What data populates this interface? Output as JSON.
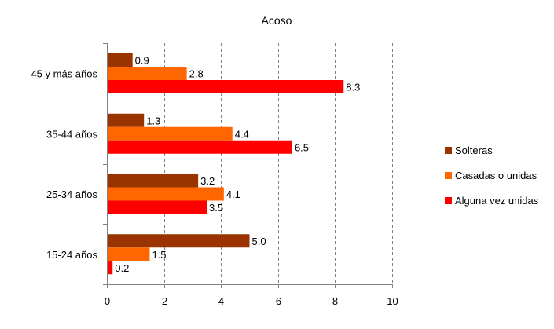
{
  "chart_data": {
    "type": "bar",
    "orientation": "horizontal",
    "title": "Acoso",
    "categories": [
      "45 y más años",
      "35-44 años",
      "25-34 años",
      "15-24 años"
    ],
    "series": [
      {
        "name": "Solteras",
        "color": "#993300",
        "values": [
          0.9,
          1.3,
          3.2,
          5.0
        ],
        "labels": [
          "0.9",
          "1.3",
          "3.2",
          "5.0"
        ]
      },
      {
        "name": "Casadas o unidas",
        "color": "#ff6600",
        "values": [
          2.8,
          4.4,
          4.1,
          1.5
        ],
        "labels": [
          "2.8",
          "4.4",
          "4.1",
          "1.5"
        ]
      },
      {
        "name": "Alguna vez unidas",
        "color": "#ff0000",
        "values": [
          8.3,
          6.5,
          3.5,
          0.2
        ],
        "labels": [
          "8.3",
          "6.5",
          "3.5",
          "0.2"
        ]
      }
    ],
    "xlim": [
      0,
      10
    ],
    "xticks": [
      "0",
      "2",
      "4",
      "6",
      "8",
      "10"
    ],
    "grid": "vertical-dashed",
    "legend_position": "right"
  }
}
